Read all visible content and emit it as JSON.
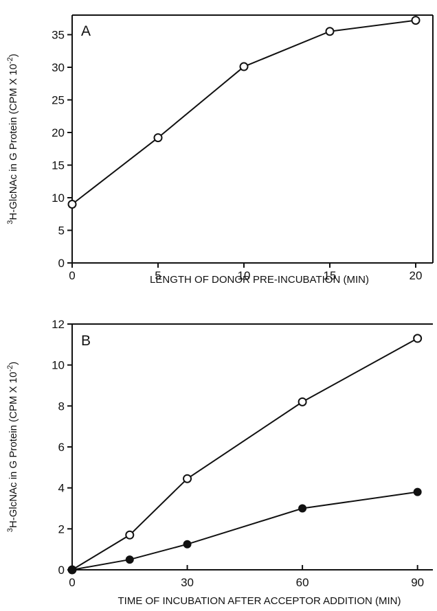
{
  "chart_data": [
    {
      "type": "line",
      "panel_label": "A",
      "xlabel": "LENGTH OF DONOR PRE-INCUBATION (MIN)",
      "ylabel": "3H-GlcNAc in G Protein (CPM X 10-2)",
      "ylabel_parts": {
        "superscript_mass": "3",
        "main": "H-GlcNAc in G Protein (CPM X 10",
        "exponent": "-2",
        "close": ")"
      },
      "xlim": [
        0,
        21
      ],
      "ylim": [
        0,
        38
      ],
      "x_ticks": [
        0,
        5,
        10,
        15,
        20
      ],
      "y_ticks": [
        0,
        5,
        10,
        15,
        20,
        25,
        30,
        35
      ],
      "grid": false,
      "series": [
        {
          "marker": "open-circle",
          "x": [
            0,
            5,
            10,
            15,
            20
          ],
          "y": [
            9,
            19.2,
            30.1,
            35.5,
            37.2
          ]
        }
      ]
    },
    {
      "type": "line",
      "panel_label": "B",
      "xlabel": "TIME OF INCUBATION AFTER ACCEPTOR ADDITION (MIN)",
      "ylabel": "3H-GlcNAc in G Protein (CPM X 10-2)",
      "ylabel_parts": {
        "superscript_mass": "3",
        "main": "H-GlcNAc in G Protein (CPM X 10",
        "exponent": "-2",
        "close": ")"
      },
      "xlim": [
        0,
        94
      ],
      "ylim": [
        0,
        12
      ],
      "x_ticks": [
        0,
        30,
        60,
        90
      ],
      "y_ticks": [
        0,
        2,
        4,
        6,
        8,
        10,
        12
      ],
      "grid": false,
      "series": [
        {
          "marker": "open-circle",
          "x": [
            0,
            15,
            30,
            60,
            90
          ],
          "y": [
            0,
            1.7,
            4.45,
            8.2,
            11.3
          ]
        },
        {
          "marker": "filled-circle",
          "x": [
            0,
            15,
            30,
            60,
            90
          ],
          "y": [
            0,
            0.5,
            1.25,
            3.0,
            3.8
          ]
        }
      ]
    }
  ]
}
